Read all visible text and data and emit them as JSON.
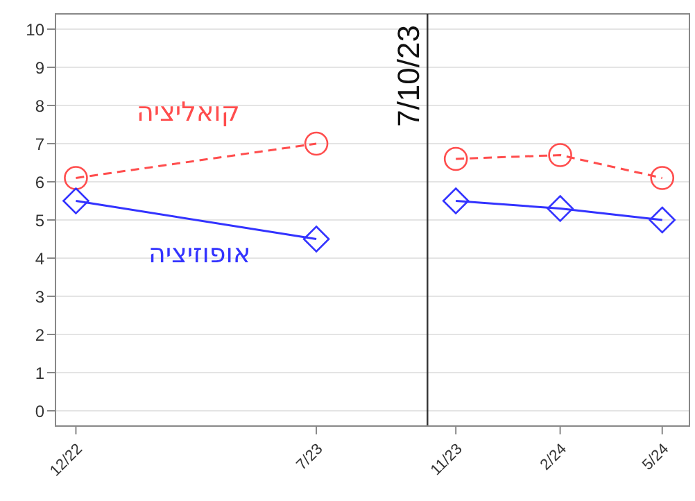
{
  "chart_data": {
    "type": "line",
    "x": [
      "2022-12",
      "2023-07",
      "2023-10-07",
      "2023-11",
      "2024-02",
      "2024-05"
    ],
    "series": [
      {
        "name": "קואליציה",
        "color": "#ff4d4d",
        "values": [
          6.1,
          7.0,
          null,
          6.6,
          6.7,
          6.1
        ],
        "line_style": "dashed",
        "marker": "circle"
      },
      {
        "name": "אופוזיציה",
        "color": "#3333ff",
        "values": [
          5.5,
          4.5,
          null,
          5.5,
          5.3,
          5.0
        ],
        "line_style": "solid",
        "marker": "diamond"
      }
    ],
    "xlim": [
      "2022-11-13",
      "2024-05-25"
    ],
    "xticks": [
      {
        "value": "2022-12",
        "label": "12/22"
      },
      {
        "value": "2023-07",
        "label": "7/23"
      },
      {
        "value": "2023-11",
        "label": "11/23"
      },
      {
        "value": "2024-02",
        "label": "2/24"
      },
      {
        "value": "2024-05",
        "label": "5/24"
      }
    ],
    "ylim": [
      -0.4,
      10.4
    ],
    "yticks": [
      0,
      1,
      2,
      3,
      4,
      5,
      6,
      7,
      8,
      9,
      10
    ],
    "ref_lines": [
      {
        "axis": "x",
        "value": "2023-10-07",
        "label": "7/10/23",
        "color": "#333333"
      }
    ],
    "grid": "y",
    "legend": false
  }
}
